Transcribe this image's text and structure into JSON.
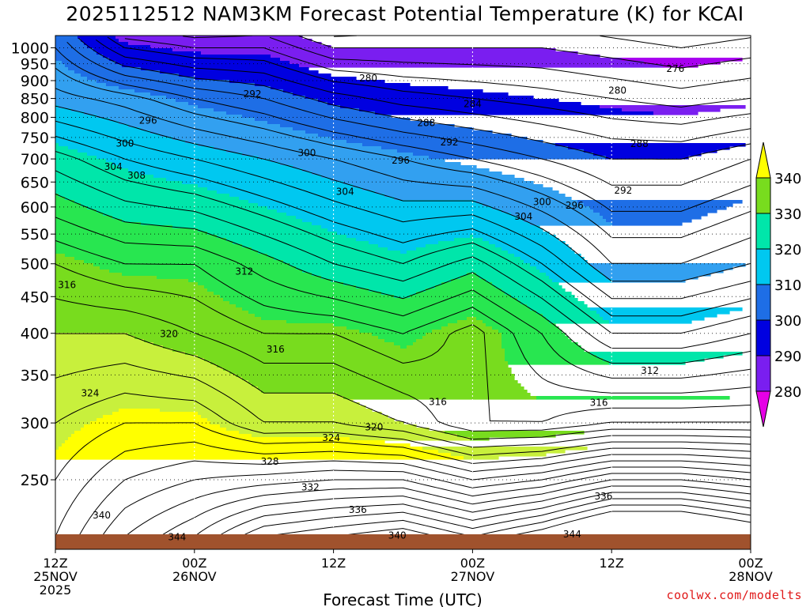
{
  "title": "2025112512 NAM3KM Forecast Potential Temperature (K) for KCAI",
  "credit": "coolwx.com/modelts",
  "colors": {
    "bands": [
      "#e600e6",
      "#a800f0",
      "#7a1ef0",
      "#0000e0",
      "#1e6ee6",
      "#32a0f0",
      "#00c8f0",
      "#00e6aa",
      "#28e650",
      "#78dc1e",
      "#c8f03c",
      "#ffff00"
    ],
    "ground": "#a0522d"
  },
  "chart_data": {
    "type": "contour",
    "title": "2025112512 NAM3KM Forecast Potential Temperature (K) for KCAI",
    "xlabel": "Forecast Time (UTC)",
    "ylabel": "",
    "y_scale": "log",
    "xlim_hours": [
      0,
      60
    ],
    "ylim_hPa": [
      1040,
      200
    ],
    "y_ticks": [
      250,
      300,
      350,
      400,
      450,
      500,
      550,
      600,
      650,
      700,
      750,
      800,
      850,
      900,
      950,
      1000
    ],
    "x_ticks": [
      {
        "hour": 0,
        "lines": [
          "12Z",
          "25NOV",
          "2025"
        ]
      },
      {
        "hour": 12,
        "lines": [
          "00Z",
          "26NOV"
        ]
      },
      {
        "hour": 24,
        "lines": [
          "12Z"
        ]
      },
      {
        "hour": 36,
        "lines": [
          "00Z",
          "27NOV"
        ]
      },
      {
        "hour": 48,
        "lines": [
          "12Z"
        ]
      },
      {
        "hour": 60,
        "lines": [
          "00Z",
          "28NOV"
        ]
      }
    ],
    "grid": true,
    "colorbar": {
      "labels": [
        "340",
        "330",
        "320",
        "310",
        "300",
        "290",
        "280"
      ],
      "fills": [
        "#78dc1e",
        "#00e6aa",
        "#00c8f0",
        "#1e6ee6",
        "#0000e0",
        "#7a1ef0"
      ],
      "top_arrow": "#ffff00",
      "bottom_arrow": "#e600e6"
    },
    "contour_interval_K": 2,
    "theta_profiles_K": [
      {
        "hour": 0,
        "theta": [
          [
            1000,
            294
          ],
          [
            850,
            299
          ],
          [
            700,
            307
          ],
          [
            500,
            316
          ],
          [
            400,
            320
          ],
          [
            300,
            324
          ],
          [
            250,
            326
          ]
        ]
      },
      {
        "hour": 6,
        "theta": [
          [
            1000,
            286
          ],
          [
            850,
            297
          ],
          [
            700,
            304
          ],
          [
            500,
            314
          ],
          [
            400,
            320
          ],
          [
            300,
            326
          ],
          [
            250,
            330
          ]
        ]
      },
      {
        "hour": 12,
        "theta": [
          [
            1000,
            284
          ],
          [
            850,
            294
          ],
          [
            700,
            302
          ],
          [
            500,
            314
          ],
          [
            400,
            318
          ],
          [
            300,
            326
          ],
          [
            250,
            332
          ]
        ]
      },
      {
        "hour": 18,
        "theta": [
          [
            1000,
            284
          ],
          [
            850,
            292
          ],
          [
            700,
            300
          ],
          [
            500,
            311
          ],
          [
            400,
            316
          ],
          [
            300,
            322
          ],
          [
            250,
            333
          ]
        ]
      },
      {
        "hour": 24,
        "theta": [
          [
            1000,
            280
          ],
          [
            850,
            289
          ],
          [
            700,
            298
          ],
          [
            500,
            308
          ],
          [
            400,
            316
          ],
          [
            300,
            322
          ],
          [
            250,
            334
          ]
        ]
      },
      {
        "hour": 30,
        "theta": [
          [
            1000,
            280
          ],
          [
            850,
            287
          ],
          [
            700,
            296
          ],
          [
            500,
            306
          ],
          [
            400,
            314
          ],
          [
            300,
            320
          ],
          [
            250,
            334
          ]
        ]
      },
      {
        "hour": 36,
        "theta": [
          [
            1000,
            280
          ],
          [
            850,
            286
          ],
          [
            700,
            294
          ],
          [
            500,
            309
          ],
          [
            400,
            317
          ],
          [
            300,
            316
          ],
          [
            250,
            330
          ]
        ]
      },
      {
        "hour": 42,
        "theta": [
          [
            1000,
            280
          ],
          [
            850,
            285
          ],
          [
            700,
            292
          ],
          [
            500,
            304
          ],
          [
            400,
            312
          ],
          [
            300,
            316
          ],
          [
            250,
            332
          ]
        ]
      },
      {
        "hour": 48,
        "theta": [
          [
            1000,
            279
          ],
          [
            850,
            284
          ],
          [
            700,
            290
          ],
          [
            500,
            298
          ],
          [
            400,
            306
          ],
          [
            300,
            318
          ],
          [
            250,
            336
          ]
        ]
      },
      {
        "hour": 54,
        "theta": [
          [
            1000,
            278
          ],
          [
            850,
            283
          ],
          [
            700,
            290
          ],
          [
            500,
            298
          ],
          [
            400,
            306
          ],
          [
            300,
            318
          ],
          [
            250,
            336
          ]
        ]
      },
      {
        "hour": 60,
        "theta": [
          [
            1000,
            279
          ],
          [
            850,
            284
          ],
          [
            700,
            292
          ],
          [
            500,
            300
          ],
          [
            400,
            308
          ],
          [
            300,
            318
          ],
          [
            250,
            334
          ]
        ]
      }
    ],
    "contour_labels": [
      {
        "text": "344",
        "hour": 10.5,
        "hPa": 208
      },
      {
        "text": "340",
        "hour": 29.5,
        "hPa": 209
      },
      {
        "text": "344",
        "hour": 44.6,
        "hPa": 210
      },
      {
        "text": "340",
        "hour": 4.0,
        "hPa": 223
      },
      {
        "text": "336",
        "hour": 26.1,
        "hPa": 227
      },
      {
        "text": "336",
        "hour": 47.3,
        "hPa": 237
      },
      {
        "text": "332",
        "hour": 22.0,
        "hPa": 244
      },
      {
        "text": "328",
        "hour": 18.5,
        "hPa": 265
      },
      {
        "text": "324",
        "hour": 23.8,
        "hPa": 286
      },
      {
        "text": "320",
        "hour": 27.5,
        "hPa": 296
      },
      {
        "text": "316",
        "hour": 33.0,
        "hPa": 321
      },
      {
        "text": "316",
        "hour": 46.9,
        "hPa": 320
      },
      {
        "text": "324",
        "hour": 3.0,
        "hPa": 330
      },
      {
        "text": "312",
        "hour": 51.3,
        "hPa": 355
      },
      {
        "text": "316",
        "hour": 19.0,
        "hPa": 380
      },
      {
        "text": "320",
        "hour": 9.8,
        "hPa": 399
      },
      {
        "text": "316",
        "hour": 1.0,
        "hPa": 467
      },
      {
        "text": "312",
        "hour": 16.3,
        "hPa": 488
      },
      {
        "text": "304",
        "hour": 40.4,
        "hPa": 582
      },
      {
        "text": "300",
        "hour": 42.0,
        "hPa": 610
      },
      {
        "text": "296",
        "hour": 44.8,
        "hPa": 603
      },
      {
        "text": "304",
        "hour": 25.0,
        "hPa": 630
      },
      {
        "text": "292",
        "hour": 49.0,
        "hPa": 633
      },
      {
        "text": "308",
        "hour": 7.0,
        "hPa": 664
      },
      {
        "text": "304",
        "hour": 5.0,
        "hPa": 683
      },
      {
        "text": "296",
        "hour": 29.8,
        "hPa": 697
      },
      {
        "text": "300",
        "hour": 21.7,
        "hPa": 714
      },
      {
        "text": "300",
        "hour": 6.0,
        "hPa": 736
      },
      {
        "text": "292",
        "hour": 34.0,
        "hPa": 738
      },
      {
        "text": "288",
        "hour": 50.4,
        "hPa": 735
      },
      {
        "text": "288",
        "hour": 32.0,
        "hPa": 786
      },
      {
        "text": "296",
        "hour": 8.0,
        "hPa": 792
      },
      {
        "text": "284",
        "hour": 36.0,
        "hPa": 835
      },
      {
        "text": "292",
        "hour": 17.0,
        "hPa": 862
      },
      {
        "text": "280",
        "hour": 48.5,
        "hPa": 872
      },
      {
        "text": "280",
        "hour": 27.0,
        "hPa": 907
      },
      {
        "text": "276",
        "hour": 53.5,
        "hPa": 935
      }
    ]
  }
}
